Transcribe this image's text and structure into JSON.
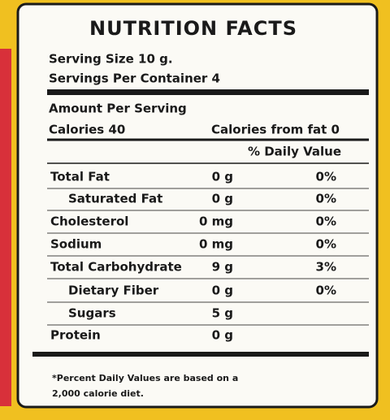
{
  "title": "NUTRITION FACTS",
  "serving_size": "Serving Size 10 g.",
  "servings_per_container": "Servings Per Container 4",
  "amount_per_serving": "Amount Per Serving",
  "calories": "Calories 40",
  "calories_from_fat": "Calories from fat 0",
  "daily_value_header": "% Daily Value",
  "rows": [
    [
      "Total Fat",
      "0 g",
      "0%"
    ],
    [
      "Saturated Fat",
      "0 g",
      "0%"
    ],
    [
      "Cholesterol",
      "0 mg",
      "0%"
    ],
    [
      "Sodium",
      "0 mg",
      "0%"
    ],
    [
      "Total Carbohydrate",
      "9 g",
      "3%"
    ],
    [
      "Dietary Fiber",
      "0 g",
      "0%"
    ],
    [
      "Sugars",
      "5 g"
    ],
    [
      "Protein",
      "0 g"
    ]
  ],
  "footnote": [
    "*Percent Daily Values are based on a",
    "2,000 calorie diet."
  ]
}
